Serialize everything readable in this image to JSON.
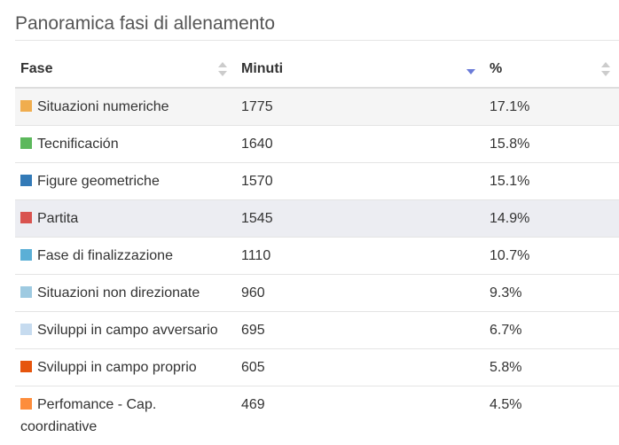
{
  "title": "Panoramica fasi di allenamento",
  "table": {
    "headers": {
      "phase": "Fase",
      "minutes": "Minuti",
      "percent": "%"
    },
    "sorted_column": "minutes",
    "sort_direction": "descending",
    "rows": [
      {
        "phase": "Situazioni numeriche",
        "minutes": "1775",
        "percent": "17.1%",
        "color": "#f0ad4e"
      },
      {
        "phase": "Tecnificación",
        "minutes": "1640",
        "percent": "15.8%",
        "color": "#5cb85c"
      },
      {
        "phase": "Figure geometriche",
        "minutes": "1570",
        "percent": "15.1%",
        "color": "#337ab7"
      },
      {
        "phase": "Partita",
        "minutes": "1545",
        "percent": "14.9%",
        "color": "#d9534f"
      },
      {
        "phase": "Fase di finalizzazione",
        "minutes": "1110",
        "percent": "10.7%",
        "color": "#5bafd6"
      },
      {
        "phase": "Situazioni non direzionate",
        "minutes": "960",
        "percent": "9.3%",
        "color": "#9ecae1"
      },
      {
        "phase": "Sviluppi in campo avversario",
        "minutes": "695",
        "percent": "6.7%",
        "color": "#c6dbef"
      },
      {
        "phase": "Sviluppi in campo proprio",
        "minutes": "605",
        "percent": "5.8%",
        "color": "#e6550d"
      },
      {
        "phase": "Perfomance - Cap. coordinative",
        "minutes": "469",
        "percent": "4.5%",
        "color": "#fd8d3c"
      }
    ]
  }
}
